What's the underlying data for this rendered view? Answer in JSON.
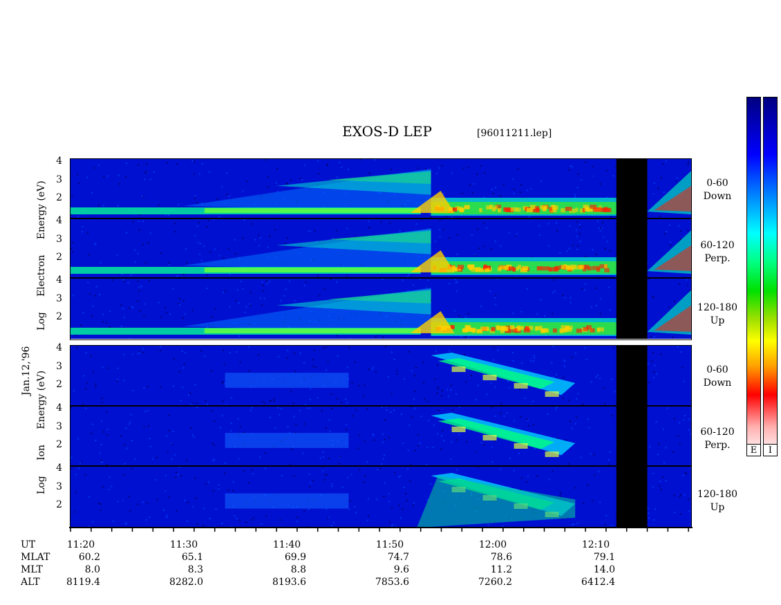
{
  "chart_data": {
    "type": "heatmap",
    "title": "EXOS-D LEP",
    "file_label": "[96011211.lep]",
    "date_label": "Jan.12,'96",
    "electron_ylabel": [
      "Log",
      "Electron",
      "Energy",
      "(eV)"
    ],
    "ion_ylabel": [
      "Log",
      "Ion",
      "Energy",
      "(eV)"
    ],
    "y_ticks": [
      "4",
      "3",
      "2"
    ],
    "ylim": [
      1,
      4
    ],
    "pitch_angle_panels": [
      {
        "range": "0-60",
        "direction": "Down"
      },
      {
        "range": "60-120",
        "direction": "Perp."
      },
      {
        "range": "120-180",
        "direction": "Up"
      }
    ],
    "colorbar_labels": [
      "E",
      "I"
    ],
    "x_axis": {
      "ut_label": "UT",
      "mlat_label": "MLAT",
      "mlt_label": "MLT",
      "alt_label": "ALT",
      "ut": [
        "11:20",
        "11:30",
        "11:40",
        "11:50",
        "12:00",
        "12:10"
      ],
      "mlat": [
        "60.2",
        "65.1",
        "69.9",
        "74.7",
        "78.6",
        "79.1"
      ],
      "mlt": [
        "8.0",
        "8.3",
        "8.8",
        "9.6",
        "11.2",
        "14.0"
      ],
      "alt": [
        "8119.4",
        "8282.0",
        "8193.6",
        "7853.6",
        "7260.2",
        "6412.4"
      ]
    },
    "data_gap_ut": [
      "12:12",
      "12:15"
    ],
    "colors": {
      "background": "#0010d0",
      "low": "#0030ff",
      "mid": "#00c8ff",
      "high": "#00e040",
      "peak": "#ffd000",
      "max": "#ff2000"
    }
  }
}
